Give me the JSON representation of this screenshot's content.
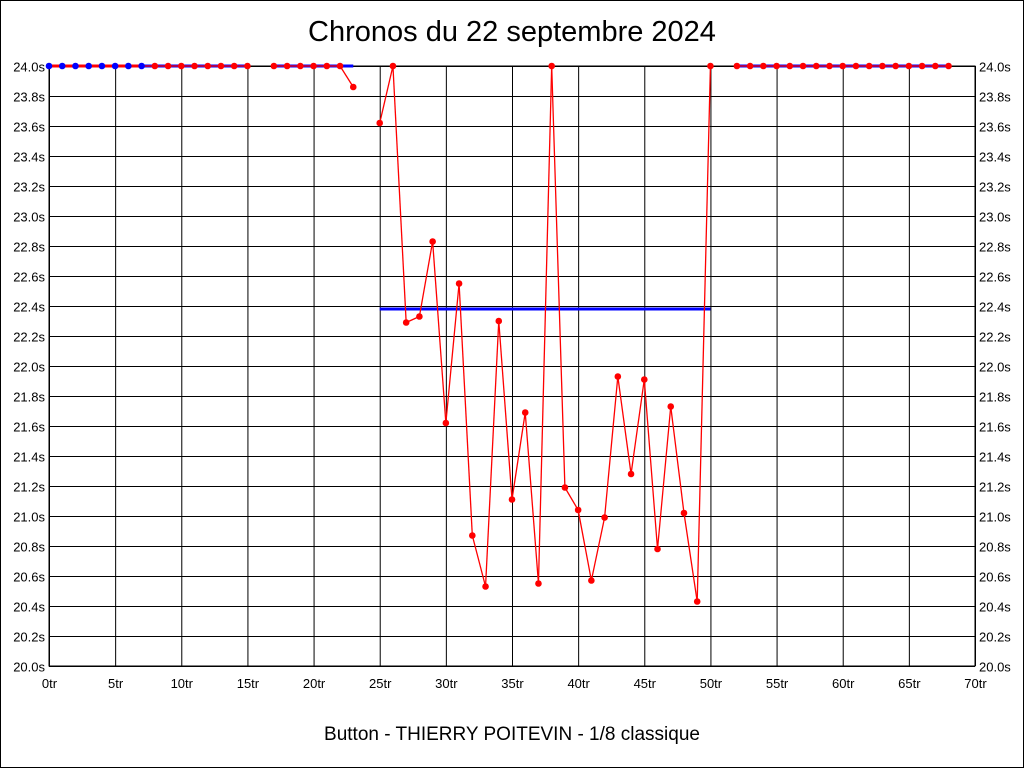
{
  "chart_data": {
    "type": "line",
    "title": "Chronos du 22 septembre 2024",
    "xlabel": "Button - THIERRY POITEVIN - 1/8 classique",
    "ylabel": "",
    "xlim": [
      0,
      70
    ],
    "ylim": [
      20.0,
      24.0
    ],
    "x_ticks": [
      0,
      5,
      10,
      15,
      20,
      25,
      30,
      35,
      40,
      45,
      50,
      55,
      60,
      65,
      70
    ],
    "x_tick_suffix": "tr",
    "y_ticks": [
      20.0,
      20.2,
      20.4,
      20.6,
      20.8,
      21.0,
      21.2,
      21.4,
      21.6,
      21.8,
      22.0,
      22.2,
      22.4,
      22.6,
      22.8,
      23.0,
      23.2,
      23.4,
      23.6,
      23.8,
      24.0
    ],
    "y_tick_suffix": "s",
    "grid": true,
    "series": [
      {
        "color": "#ff0000",
        "points": [
          [
            0,
            24.0
          ],
          [
            1,
            24.0
          ],
          [
            2,
            24.0
          ],
          [
            3,
            24.0
          ],
          [
            4,
            24.0
          ],
          [
            5,
            24.0
          ],
          [
            6,
            24.0
          ],
          [
            7,
            24.0
          ],
          [
            8,
            24.0
          ],
          [
            9,
            24.0
          ],
          [
            10,
            24.0
          ],
          [
            11,
            24.0
          ],
          [
            12,
            24.0
          ],
          [
            13,
            24.0
          ],
          [
            14,
            24.0
          ],
          [
            15,
            24.0
          ],
          [
            17,
            24.0
          ],
          [
            18,
            24.0
          ],
          [
            19,
            24.0
          ],
          [
            20,
            24.0
          ],
          [
            21,
            24.0
          ],
          [
            22,
            24.0
          ],
          [
            23,
            23.86
          ],
          [
            25,
            23.62
          ],
          [
            26,
            24.0
          ],
          [
            27,
            22.29
          ],
          [
            28,
            22.33
          ],
          [
            29,
            22.83
          ],
          [
            30,
            21.62
          ],
          [
            31,
            22.55
          ],
          [
            32,
            20.87
          ],
          [
            33,
            20.53
          ],
          [
            34,
            22.3
          ],
          [
            35,
            21.11
          ],
          [
            36,
            21.69
          ],
          [
            37,
            20.55
          ],
          [
            38,
            24.0
          ],
          [
            39,
            21.19
          ],
          [
            40,
            21.04
          ],
          [
            41,
            20.57
          ],
          [
            42,
            20.99
          ],
          [
            43,
            21.93
          ],
          [
            44,
            21.28
          ],
          [
            45,
            21.91
          ],
          [
            46,
            20.78
          ],
          [
            47,
            21.73
          ],
          [
            48,
            21.02
          ],
          [
            49,
            20.43
          ],
          [
            50,
            24.0
          ],
          [
            52,
            24.0
          ],
          [
            53,
            24.0
          ],
          [
            54,
            24.0
          ],
          [
            55,
            24.0
          ],
          [
            56,
            24.0
          ],
          [
            57,
            24.0
          ],
          [
            58,
            24.0
          ],
          [
            59,
            24.0
          ],
          [
            60,
            24.0
          ],
          [
            61,
            24.0
          ],
          [
            62,
            24.0
          ],
          [
            63,
            24.0
          ],
          [
            64,
            24.0
          ],
          [
            65,
            24.0
          ],
          [
            66,
            24.0
          ],
          [
            67,
            24.0
          ],
          [
            68,
            24.0
          ]
        ],
        "blue_marker_laps": [
          0,
          1,
          2,
          3,
          4,
          5,
          6,
          7
        ]
      }
    ],
    "mean_lines": [
      {
        "color": "#0000ff",
        "from": 0,
        "to": 15,
        "value": 24.0
      },
      {
        "color": "#0000ff",
        "from": 17,
        "to": 23,
        "value": 24.0
      },
      {
        "color": "#0000ff",
        "from": 25,
        "to": 50,
        "value": 22.38
      },
      {
        "color": "#0000ff",
        "from": 52,
        "to": 68,
        "value": 24.0
      }
    ]
  }
}
